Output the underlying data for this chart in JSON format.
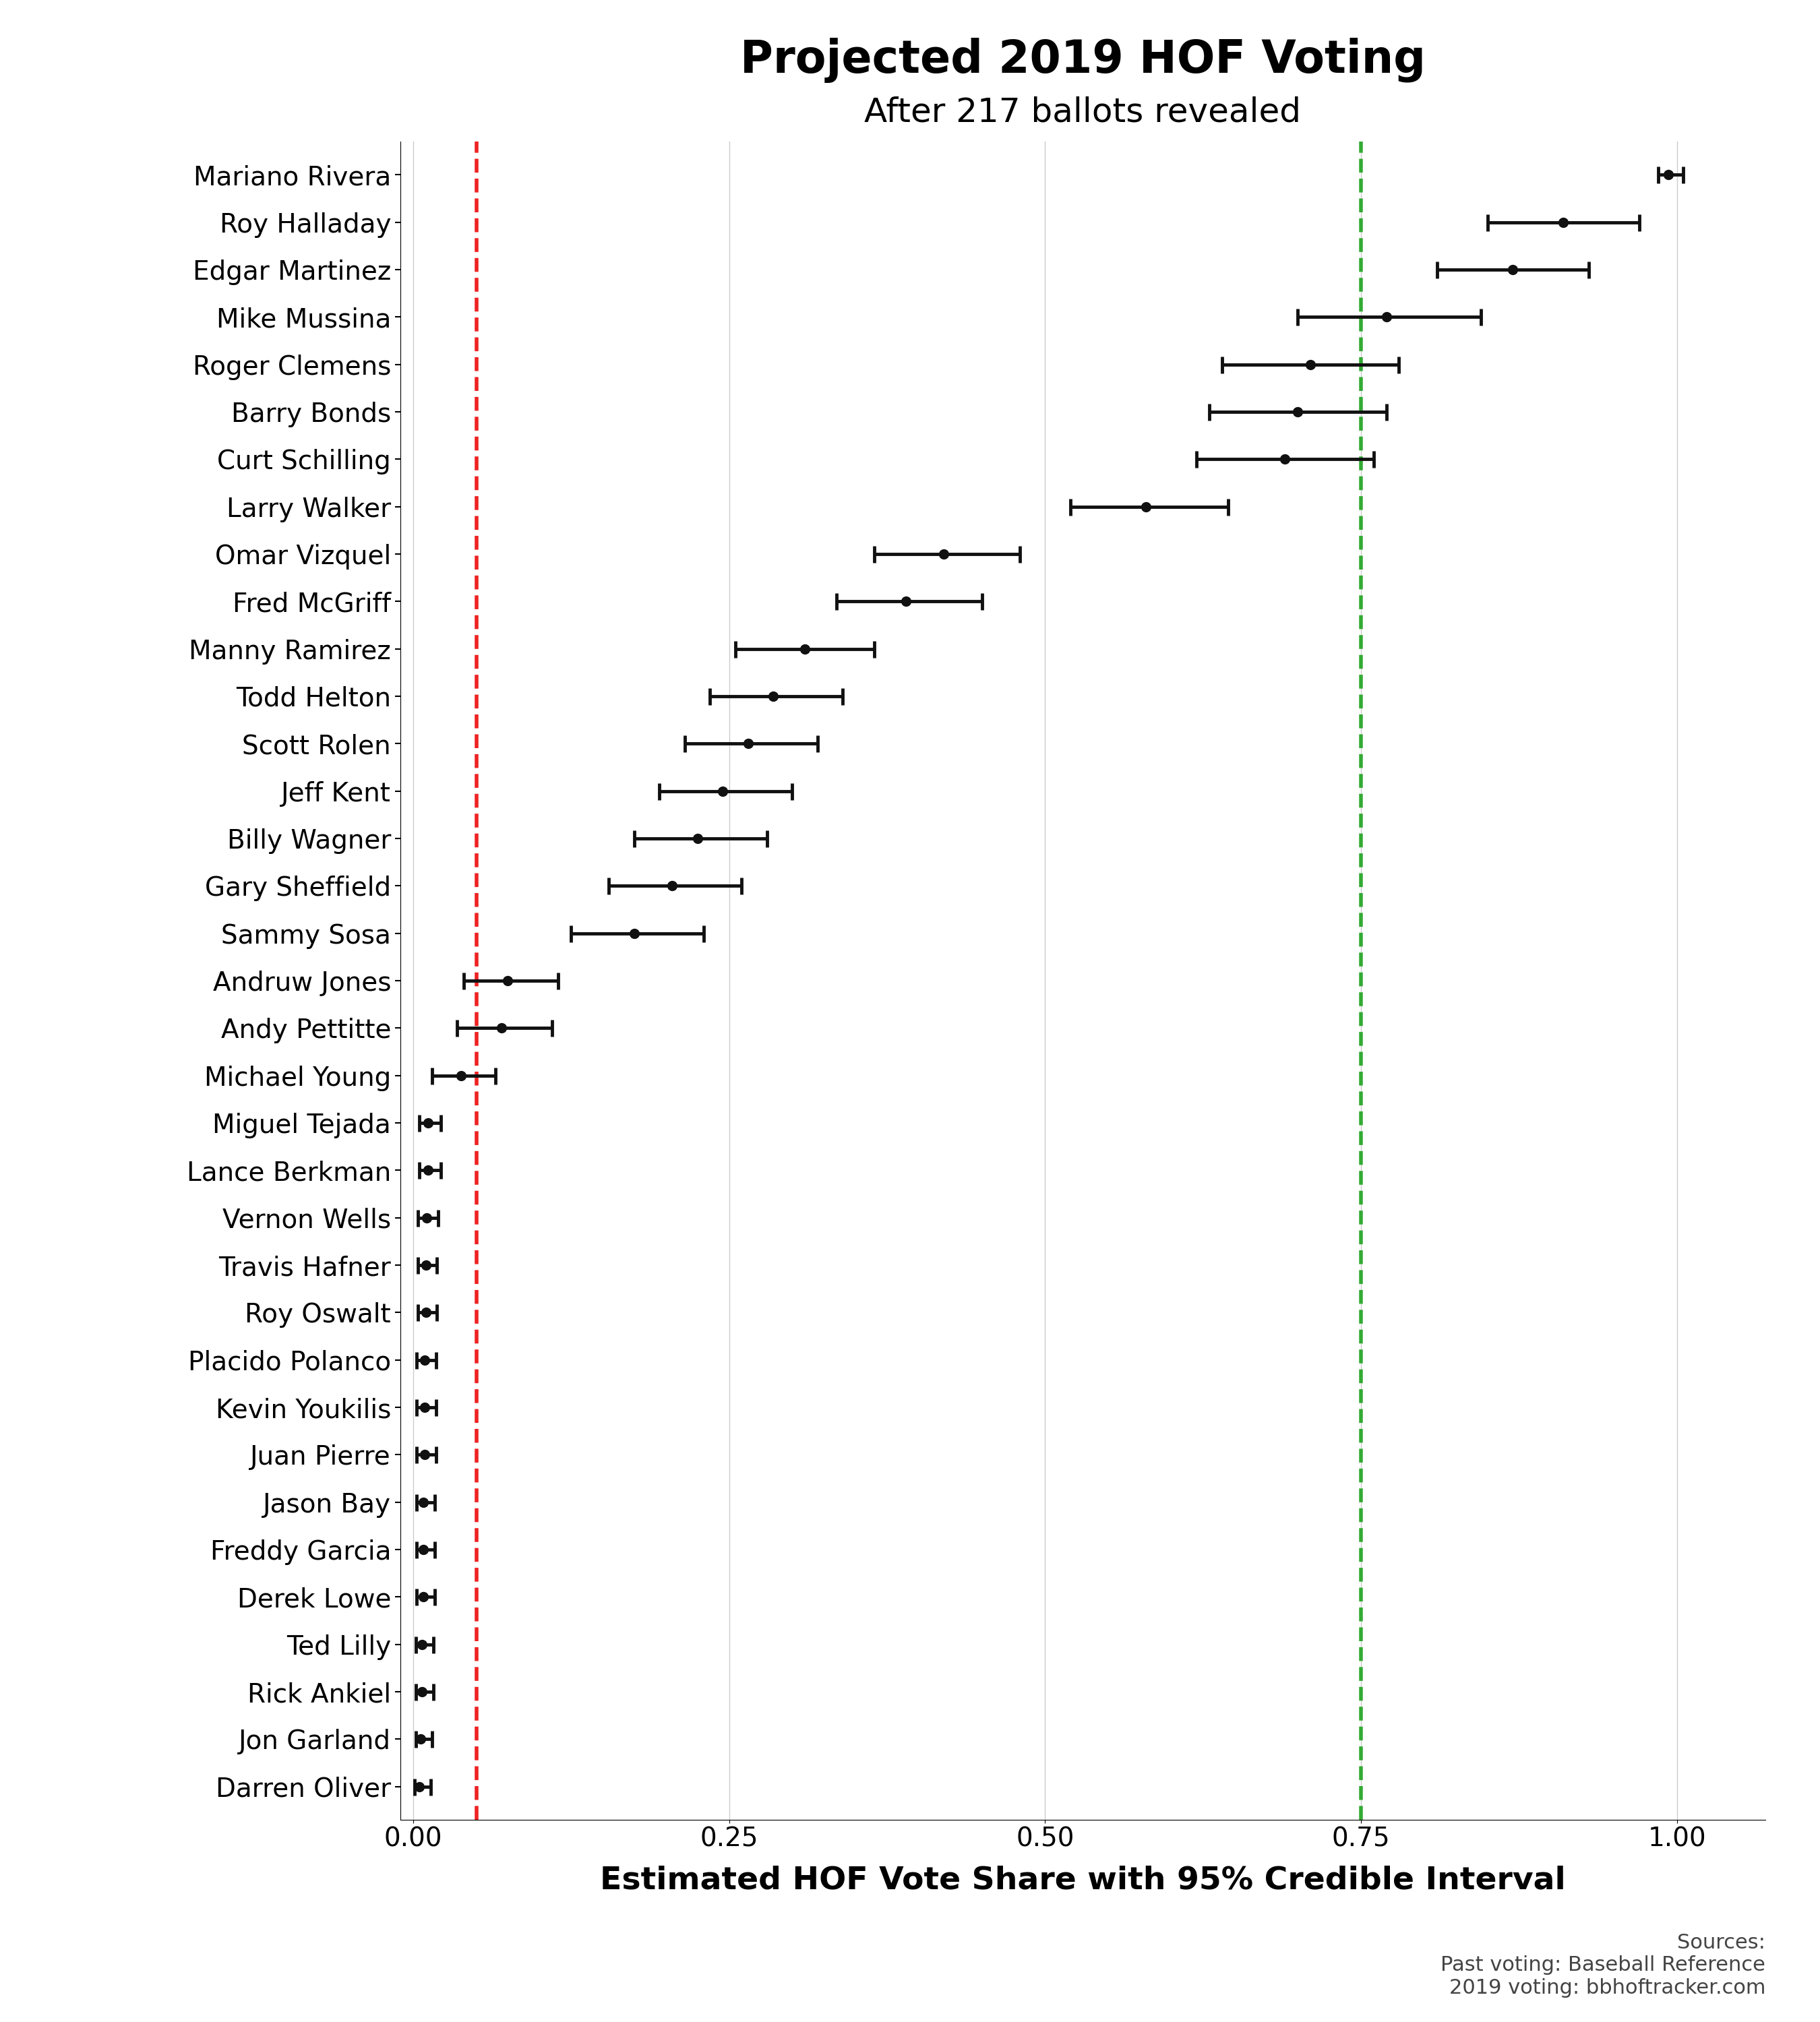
{
  "title": "Projected 2019 HOF Voting",
  "subtitle": "After 217 ballots revealed",
  "xlabel": "Estimated HOF Vote Share with 95% Credible Interval",
  "sources_text": "Sources:\nPast voting: Baseball Reference\n2019 voting: bbhoftracker.com",
  "red_vline": 0.05,
  "green_vline": 0.75,
  "players": [
    "Mariano Rivera",
    "Roy Halladay",
    "Edgar Martinez",
    "Mike Mussina",
    "Roger Clemens",
    "Barry Bonds",
    "Curt Schilling",
    "Larry Walker",
    "Omar Vizquel",
    "Fred McGriff",
    "Manny Ramirez",
    "Todd Helton",
    "Scott Rolen",
    "Jeff Kent",
    "Billy Wagner",
    "Gary Sheffield",
    "Sammy Sosa",
    "Andruw Jones",
    "Andy Pettitte",
    "Michael Young",
    "Miguel Tejada",
    "Lance Berkman",
    "Vernon Wells",
    "Travis Hafner",
    "Roy Oswalt",
    "Placido Polanco",
    "Kevin Youkilis",
    "Juan Pierre",
    "Jason Bay",
    "Freddy Garcia",
    "Derek Lowe",
    "Ted Lilly",
    "Rick Ankiel",
    "Jon Garland",
    "Darren Oliver"
  ],
  "centers": [
    0.993,
    0.91,
    0.87,
    0.77,
    0.71,
    0.7,
    0.69,
    0.58,
    0.42,
    0.39,
    0.31,
    0.285,
    0.265,
    0.245,
    0.225,
    0.205,
    0.175,
    0.075,
    0.07,
    0.038,
    0.012,
    0.012,
    0.011,
    0.01,
    0.01,
    0.009,
    0.009,
    0.009,
    0.008,
    0.008,
    0.008,
    0.007,
    0.007,
    0.006,
    0.005
  ],
  "lo": [
    0.985,
    0.85,
    0.81,
    0.7,
    0.64,
    0.63,
    0.62,
    0.52,
    0.365,
    0.335,
    0.255,
    0.235,
    0.215,
    0.195,
    0.175,
    0.155,
    0.125,
    0.04,
    0.035,
    0.015,
    0.005,
    0.005,
    0.004,
    0.004,
    0.004,
    0.003,
    0.003,
    0.003,
    0.003,
    0.003,
    0.003,
    0.002,
    0.002,
    0.002,
    0.001
  ],
  "hi": [
    1.005,
    0.97,
    0.93,
    0.845,
    0.78,
    0.77,
    0.76,
    0.645,
    0.48,
    0.45,
    0.365,
    0.34,
    0.32,
    0.3,
    0.28,
    0.26,
    0.23,
    0.115,
    0.11,
    0.065,
    0.022,
    0.022,
    0.02,
    0.019,
    0.019,
    0.018,
    0.018,
    0.018,
    0.017,
    0.017,
    0.017,
    0.016,
    0.016,
    0.015,
    0.014
  ],
  "dot_color": "#111111",
  "line_color": "#111111",
  "red_line_color": "#ee2222",
  "green_line_color": "#33aa33",
  "bg_color": "#ffffff",
  "grid_color": "#cccccc",
  "title_fontsize": 48,
  "subtitle_fontsize": 36,
  "xlabel_fontsize": 34,
  "player_fontsize": 28,
  "tick_fontsize": 28,
  "source_fontsize": 22
}
